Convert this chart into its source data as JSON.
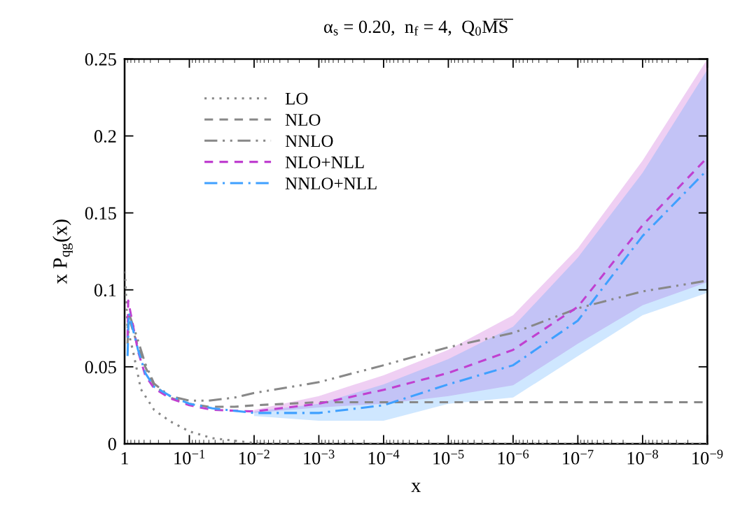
{
  "chart_data": {
    "type": "line",
    "title": "α$_{s}$ = 0.20,  n$_{f}$ = 4,  Q$_{0}$M̅S̅",
    "xlabel": "x",
    "ylabel": "x P$_{qg}$(x)",
    "log": "x",
    "xlim": [
      1,
      1e-09
    ],
    "ylim": [
      0,
      0.25
    ],
    "xticks": [
      1,
      {
        "value": 0.1,
        "label": "10$^{−1}$"
      },
      {
        "value": 0.01,
        "label": "10$^{−2}$"
      },
      {
        "value": 0.001,
        "label": "10$^{−3}$"
      },
      {
        "value": 0.0001,
        "label": "10$^{−4}$"
      },
      {
        "value": 1e-05,
        "label": "10$^{−5}$"
      },
      {
        "value": 1e-06,
        "label": "10$^{−6}$"
      },
      {
        "value": 1e-07,
        "label": "10$^{−7}$"
      },
      {
        "value": 1e-08,
        "label": "10$^{−8}$"
      },
      {
        "value": 1e-09,
        "label": "10$^{−9}$"
      }
    ],
    "yticks": [
      0,
      0.05,
      0.1,
      0.15,
      0.2,
      0.25
    ],
    "grid": false,
    "legend": "top left",
    "series": [
      {
        "name": "LO",
        "color": "#888888",
        "line_style": "dotted",
        "x": [
          0.99,
          0.9,
          0.74,
          0.56,
          0.35,
          0.197,
          0.1,
          0.044,
          0.0126,
          0.008,
          1e-09
        ],
        "values": [
          0.112,
          0.075,
          0.06,
          0.0354,
          0.022,
          0.0145,
          0.008,
          0.0036,
          0.001,
          0,
          0
        ]
      },
      {
        "name": "NLO",
        "color": "#888888",
        "line_style": "dashed",
        "x": [
          0.9,
          0.86,
          0.62,
          0.48,
          0.35,
          0.2,
          0.1,
          0.05,
          0.02,
          0.01,
          0.001,
          1e-09
        ],
        "values": [
          0.075,
          0.082,
          0.063,
          0.05,
          0.038,
          0.03,
          0.026,
          0.024,
          0.024,
          0.025,
          0.027,
          0.027
        ]
      },
      {
        "name": "NNLO",
        "color": "#888888",
        "line_style": "dashdotdot",
        "x": [
          0.9,
          0.86,
          0.62,
          0.48,
          0.35,
          0.2,
          0.1,
          0.05,
          0.02,
          0.01,
          0.001,
          0.0001,
          1e-05,
          1e-06,
          1e-07,
          1e-08,
          1e-09
        ],
        "values": [
          0.065,
          0.085,
          0.067,
          0.052,
          0.039,
          0.031,
          0.028,
          0.028,
          0.03,
          0.033,
          0.04,
          0.051,
          0.0627,
          0.072,
          0.088,
          0.099,
          0.106
        ]
      },
      {
        "name": "NLO+NLL",
        "color": "#c040d0",
        "line_style": "dashed",
        "x": [
          0.9,
          0.88,
          0.62,
          0.48,
          0.35,
          0.197,
          0.1,
          0.044,
          0.01,
          0.001,
          0.0001,
          1e-05,
          1e-06,
          1e-07,
          1e-08,
          1e-09
        ],
        "values": [
          0.069,
          0.093,
          0.06,
          0.0445,
          0.036,
          0.0295,
          0.025,
          0.022,
          0.021,
          0.026,
          0.035,
          0.046,
          0.061,
          0.089,
          0.142,
          0.186
        ],
        "lower": [
          null,
          null,
          null,
          null,
          null,
          null,
          null,
          null,
          0.02,
          0.0236,
          0.026,
          0.031,
          0.038,
          0.065,
          0.09,
          0.105
        ],
        "upper": [
          null,
          null,
          null,
          null,
          null,
          null,
          null,
          null,
          0.022,
          0.031,
          0.0445,
          0.061,
          0.0835,
          0.127,
          0.184,
          0.25
        ]
      },
      {
        "name": "NNLO+NLL",
        "color": "#3fa0ff",
        "line_style": "dashdot",
        "x": [
          0.9,
          0.86,
          0.62,
          0.48,
          0.35,
          0.197,
          0.1,
          0.044,
          0.01,
          0.001,
          0.0001,
          1e-05,
          1e-06,
          1e-07,
          1e-08,
          1e-09
        ],
        "values": [
          0.057,
          0.085,
          0.061,
          0.046,
          0.037,
          0.031,
          0.026,
          0.023,
          0.02,
          0.02,
          0.025,
          0.0386,
          0.051,
          0.08,
          0.135,
          0.178
        ],
        "lower": [
          null,
          null,
          null,
          null,
          null,
          null,
          null,
          null,
          0.018,
          0.015,
          0.015,
          0.026,
          0.03,
          0.057,
          0.0835,
          0.098
        ],
        "upper": [
          null,
          null,
          null,
          null,
          null,
          null,
          null,
          null,
          0.021,
          0.026,
          0.0386,
          0.055,
          0.076,
          0.121,
          0.176,
          0.243
        ]
      }
    ]
  }
}
